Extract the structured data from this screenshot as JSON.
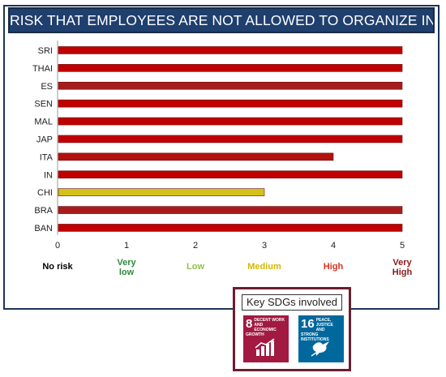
{
  "title": "RISK THAT EMPLOYEES ARE NOT ALLOWED TO ORGANIZE IN TRADE UNION",
  "chart_data": {
    "type": "bar",
    "orientation": "horizontal",
    "categories": [
      "SRI",
      "THAI",
      "ES",
      "SEN",
      "MAL",
      "JAP",
      "ITA",
      "IN",
      "CHI",
      "BRA",
      "BAN"
    ],
    "values": [
      5,
      5,
      5,
      5,
      5,
      5,
      4,
      5,
      3,
      5,
      5
    ],
    "bar_colors": [
      "#c00000",
      "#c00000",
      "#a61c1c",
      "#c00000",
      "#c00000",
      "#c00000",
      "#b31010",
      "#c00000",
      "#d4c21a",
      "#a61c1c",
      "#c00000"
    ],
    "xlim": [
      0,
      5
    ],
    "xticks": [
      0,
      1,
      2,
      3,
      4,
      5
    ],
    "grid": false
  },
  "legend": [
    {
      "label": "No risk",
      "color": "#000000"
    },
    {
      "label": "Very low",
      "line1": "Very",
      "line2": "low",
      "color": "#2e8b3c"
    },
    {
      "label": "Low",
      "color": "#8fc04a"
    },
    {
      "label": "Medium",
      "color": "#d4b800"
    },
    {
      "label": "High",
      "color": "#e0301e"
    },
    {
      "label": "Very High",
      "line1": "Very",
      "line2": "High",
      "color": "#8b1a1a"
    }
  ],
  "sdg": {
    "title": "Key SDGs involved",
    "goals": [
      {
        "number": "8",
        "text": "DECENT WORK AND ECONOMIC GROWTH",
        "color": "#a21942",
        "icon": "growth-chart-icon"
      },
      {
        "number": "16",
        "text": "PEACE, JUSTICE AND STRONG INSTITUTIONS",
        "color": "#00689d",
        "icon": "dove-icon"
      }
    ]
  }
}
